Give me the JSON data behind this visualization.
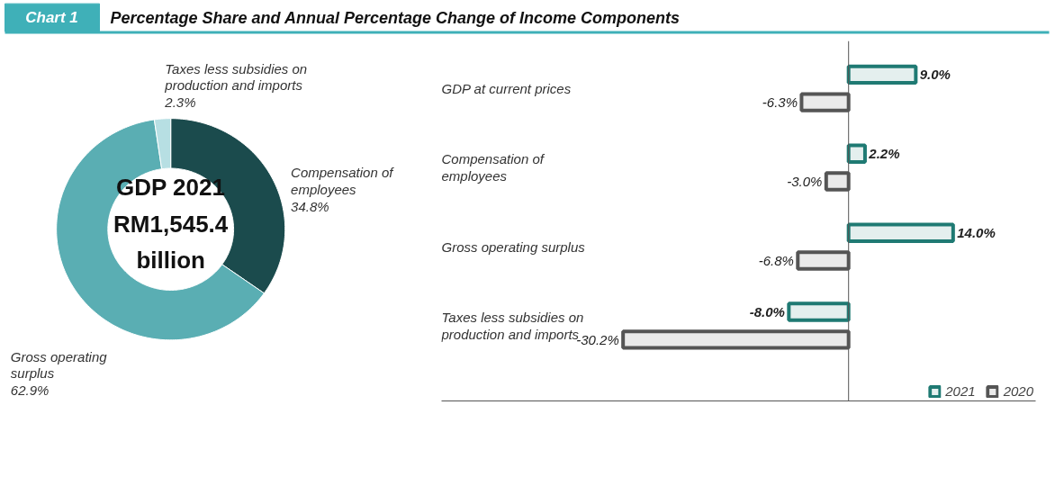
{
  "chart_data": [
    {
      "type": "donut",
      "title": "Percentage Share and Annual Percentage Change of Income Components",
      "annotations": [
        "Chart 1",
        "GDP 2021",
        "RM1,545.4 billion"
      ],
      "categories": [
        "Compensation of employees",
        "Gross operating surplus",
        "Taxes less subsidies on production and imports"
      ],
      "values": [
        34.8,
        62.9,
        2.3
      ],
      "value_labels": [
        "34.8%",
        "62.9%",
        "2.3%"
      ],
      "colors": [
        "#1b4b4d",
        "#5aaeb3",
        "#b7dfe3"
      ]
    },
    {
      "type": "bar",
      "orientation": "horizontal",
      "categories": [
        "GDP at current prices",
        "Compensation of employees",
        "Gross operating surplus",
        "Taxes less subsidies on production and imports"
      ],
      "series": [
        {
          "name": "2021",
          "color": "#1f7a73",
          "values": [
            9.0,
            2.2,
            14.0,
            -8.0
          ],
          "value_labels": [
            "9.0%",
            "2.2%",
            "14.0%",
            "-8.0%"
          ]
        },
        {
          "name": "2020",
          "color": "#555555",
          "values": [
            -6.3,
            -3.0,
            -6.8,
            -30.2
          ],
          "value_labels": [
            "-6.3%",
            "-3.0%",
            "-6.8%",
            "-30.2%"
          ]
        }
      ],
      "legend": "bottom right",
      "grid": false
    }
  ]
}
